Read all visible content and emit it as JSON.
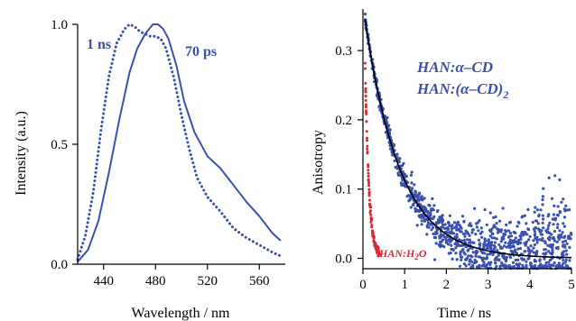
{
  "chart_data": [
    {
      "type": "line",
      "xlabel": "Wavelength / nm",
      "ylabel": "Intensity (a.u.)",
      "xlim": [
        420,
        580
      ],
      "ylim": [
        0.0,
        1.0
      ],
      "xticks": [
        440,
        480,
        520,
        560
      ],
      "yticks": [
        0.0,
        0.5,
        1.0
      ],
      "ytick_labels": [
        "0.0",
        "0.5",
        "1.0"
      ],
      "series": [
        {
          "name": "70 ps",
          "style": "solid",
          "color": "#3a4fb0",
          "x": [
            420,
            428,
            436,
            444,
            452,
            460,
            466,
            472,
            478,
            482,
            486,
            490,
            496,
            502,
            510,
            520,
            530,
            540,
            550,
            560,
            570,
            576
          ],
          "y": [
            0.01,
            0.06,
            0.18,
            0.38,
            0.6,
            0.8,
            0.9,
            0.96,
            1.0,
            1.0,
            0.98,
            0.94,
            0.83,
            0.68,
            0.55,
            0.45,
            0.4,
            0.33,
            0.26,
            0.2,
            0.13,
            0.1
          ]
        },
        {
          "name": "1 ns",
          "style": "dotted",
          "color": "#3a4fb0",
          "x": [
            420,
            426,
            432,
            438,
            444,
            450,
            456,
            460,
            464,
            468,
            472,
            476,
            480,
            484,
            488,
            494,
            500,
            506,
            512,
            520,
            530,
            540,
            550,
            560,
            570,
            578
          ],
          "y": [
            0.02,
            0.12,
            0.3,
            0.56,
            0.78,
            0.92,
            0.98,
            1.0,
            0.99,
            0.97,
            0.96,
            0.95,
            0.95,
            0.94,
            0.9,
            0.78,
            0.62,
            0.48,
            0.36,
            0.28,
            0.22,
            0.15,
            0.11,
            0.08,
            0.05,
            0.03
          ]
        }
      ],
      "annotations": [
        "1 ns",
        "70 ps"
      ]
    },
    {
      "type": "scatter",
      "xlabel": "Time / ns",
      "ylabel": "Anisotropy",
      "xlim": [
        0,
        5
      ],
      "ylim": [
        -0.015,
        0.36
      ],
      "xticks": [
        0,
        1,
        2,
        3,
        4,
        5
      ],
      "yticks": [
        0.0,
        0.1,
        0.2,
        0.3
      ],
      "ytick_labels": [
        "0.0",
        "0.1",
        "0.2",
        "0.3"
      ],
      "series": [
        {
          "name": "HAN:α–CD / HAN:(α–CD)2",
          "color": "#3a4fb0",
          "model": {
            "kind": "exp_decay",
            "t0": 0.05,
            "amplitude": 0.345,
            "tau": 0.85,
            "noise_growth": 0.006,
            "n_points": 1100
          }
        },
        {
          "name": "HAN:H2O",
          "color": "#d42b3a",
          "model": {
            "kind": "exp_decay",
            "t0": 0.05,
            "amplitude": 0.29,
            "tau": 0.09,
            "noise_growth": 0.004,
            "n_points": 120
          }
        },
        {
          "name": "fit",
          "color": "#000000",
          "style": "solid",
          "model": {
            "kind": "exp_decay",
            "t0": 0.05,
            "amplitude": 0.345,
            "tau": 0.85
          }
        }
      ],
      "annotations": [
        "HAN:α–CD",
        "HAN:(α–CD)2",
        "HAN:H2O"
      ]
    }
  ],
  "labels": {
    "left_ann_1ns": "1 ns",
    "left_ann_70ps": "70 ps",
    "legend_line1": "HAN:α–CD",
    "legend_line2_main": "HAN:(α–CD)",
    "legend_line2_sub": "2",
    "red_ann_main": "HAN:H",
    "red_ann_sub": "2",
    "red_ann_tail": "O"
  }
}
